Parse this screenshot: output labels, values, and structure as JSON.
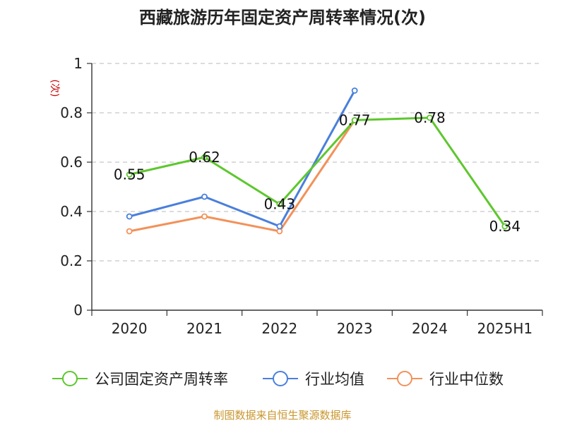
{
  "chart_data": {
    "type": "line",
    "title": "西藏旅游历年固定资产周转率情况(次)",
    "ylabel": "(次)",
    "xlabel": "",
    "categories": [
      "2020",
      "2021",
      "2022",
      "2023",
      "2024",
      "2025H1"
    ],
    "ylim": [
      0,
      1
    ],
    "yticks": [
      "0",
      "0.2",
      "0.4",
      "0.6",
      "0.8",
      "1"
    ],
    "grid": true,
    "legend_position": "bottom",
    "series": [
      {
        "name": "公司固定资产周转率",
        "color": "#5ec72e",
        "values": [
          0.55,
          0.62,
          0.43,
          0.77,
          0.78,
          0.34
        ],
        "labels": [
          "0.55",
          "0.62",
          "0.43",
          "0.77",
          "0.78",
          "0.34"
        ]
      },
      {
        "name": "行业均值",
        "color": "#4a7fdc",
        "values": [
          0.38,
          0.46,
          0.34,
          0.89,
          null,
          null
        ]
      },
      {
        "name": "行业中位数",
        "color": "#f39159",
        "values": [
          0.32,
          0.38,
          0.32,
          0.77,
          null,
          null
        ]
      }
    ],
    "source": "制图数据来自恒生聚源数据库"
  }
}
